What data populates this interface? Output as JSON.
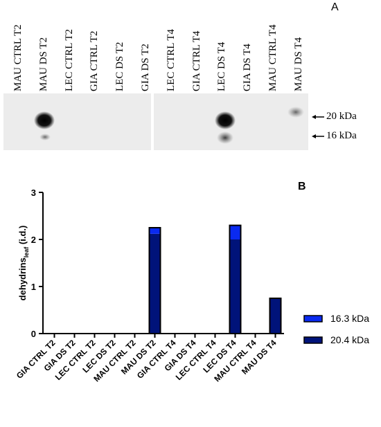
{
  "panel_a": {
    "letter": "A",
    "lanes": [
      "MAU CTRL T2",
      "MAU DS T2",
      "LEC CTRL T2",
      "GIA CTRL T2",
      "LEC DS T2",
      "GIA DS T2",
      "LEC CTRL T4",
      "GIA CTRL T4",
      "LEC DS T4",
      "GIA DS T4",
      "MAU CTRL T4",
      "MAU DS T4"
    ],
    "markers": [
      "20 kDa",
      "16 kDa"
    ]
  },
  "panel_b": {
    "letter": "B"
  },
  "chart_data": {
    "type": "bar",
    "stacked": true,
    "categories": [
      "GIA CTRL T2",
      "GIA DS T2",
      "LEC CTRL T2",
      "LEC DS T2",
      "MAU CTRL T2",
      "MAU DS T2",
      "GIA CTRL T4",
      "GIA DS T4",
      "LEC CTRL T4",
      "LEC DS T4",
      "MAU CTRL T4",
      "MAU DS T4"
    ],
    "series": [
      {
        "name": "20.4 kDa",
        "color": "#00137a",
        "values": [
          0,
          0,
          0,
          0,
          0,
          2.12,
          0,
          0,
          0,
          2.0,
          0,
          0.75
        ]
      },
      {
        "name": "16.3 kDa",
        "color": "#0a2af0",
        "values": [
          0,
          0,
          0,
          0,
          0,
          0.13,
          0,
          0,
          0,
          0.3,
          0,
          0
        ]
      }
    ],
    "ylabel_main": "dehydrins",
    "ylabel_sub": "leaf",
    "ylabel_unit": "(i.d.)",
    "ylim": [
      0,
      3
    ],
    "yticks": [
      "0",
      "1",
      "2",
      "3"
    ],
    "legend_position": "right",
    "legend_entries": [
      "16.3 kDa",
      "20.4 kDa"
    ],
    "grid": false
  }
}
